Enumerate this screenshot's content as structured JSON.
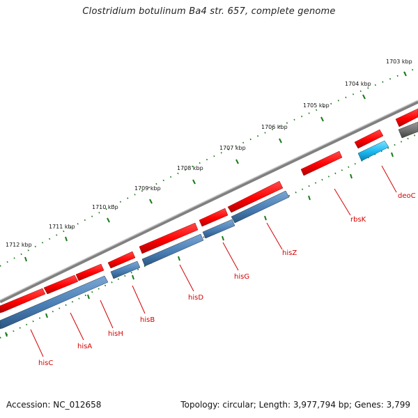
{
  "title": "Clostridium botulinum Ba4 str. 657, complete genome",
  "footer": {
    "accession": "Accession: NC_012658",
    "summary": "Topology: circular; Length: 3,977,794 bp; Genes: 3,799"
  },
  "colors": {
    "forward_gene": "#ff0000",
    "reverse_gene": "#4a7fb5",
    "highlight_gene": "#1ab8f0",
    "other_gene": "#6e6e6e",
    "backbone": "#808080",
    "tick": "#1a7a1a",
    "label": "#d40000"
  },
  "scale_ticks": [
    "1712 kbp",
    "1711 kbp",
    "1710 kbp",
    "1709 kbp",
    "1708 kbp",
    "1707 kbp",
    "1706 kbp",
    "1705 kbp",
    "1704 kbp",
    "1703 kbp"
  ],
  "gene_labels": [
    "hisC",
    "hisA",
    "hisH",
    "hisB",
    "hisD",
    "hisG",
    "hisZ",
    "rbsK",
    "deoC"
  ]
}
